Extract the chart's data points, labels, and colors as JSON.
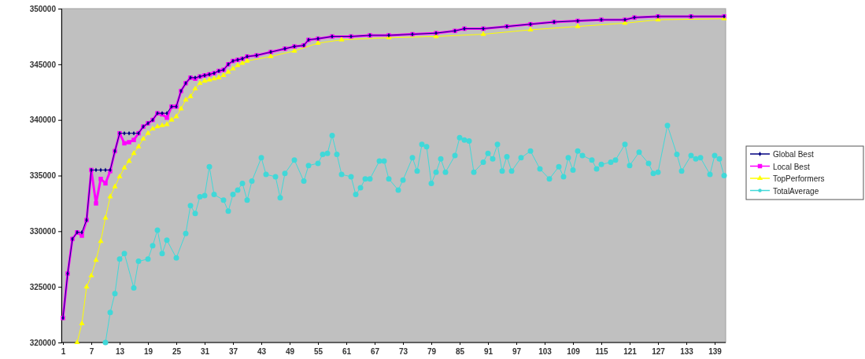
{
  "chart_data": {
    "type": "line",
    "xlim": [
      1,
      141
    ],
    "xticks": [
      1,
      7,
      13,
      19,
      25,
      31,
      37,
      43,
      49,
      55,
      61,
      67,
      73,
      79,
      85,
      91,
      97,
      103,
      109,
      115,
      121,
      127,
      133,
      139
    ],
    "ylim": [
      320000,
      350000
    ],
    "yticks": [
      320000,
      325000,
      330000,
      335000,
      340000,
      345000,
      350000
    ],
    "grid": false,
    "legend": "right",
    "series": [
      {
        "name": "Global Best",
        "color": "#000080",
        "marker": "diamond",
        "x": [
          1,
          2,
          3,
          4,
          5,
          6,
          7,
          8,
          9,
          10,
          11,
          12,
          13,
          14,
          15,
          16,
          17,
          18,
          19,
          20,
          21,
          22,
          23,
          24,
          25,
          26,
          27,
          28,
          29,
          30,
          31,
          32,
          33,
          34,
          35,
          36,
          37,
          38,
          39,
          40,
          42,
          45,
          48,
          50,
          52,
          53,
          55,
          58,
          62,
          66,
          70,
          75,
          80,
          84,
          86,
          90,
          95,
          100,
          105,
          110,
          115,
          120,
          122,
          127,
          134,
          141
        ],
        "values": [
          322200,
          326200,
          329300,
          329900,
          329900,
          331000,
          335500,
          335500,
          335500,
          335500,
          335500,
          337200,
          338800,
          338800,
          338800,
          338800,
          338800,
          339400,
          339700,
          340000,
          340600,
          340600,
          340600,
          341200,
          341200,
          342600,
          343300,
          343800,
          343800,
          343900,
          344000,
          344100,
          344200,
          344400,
          344500,
          345000,
          345300,
          345400,
          345500,
          345700,
          345800,
          346100,
          346400,
          346600,
          346700,
          347200,
          347300,
          347500,
          347500,
          347600,
          347600,
          347700,
          347800,
          348000,
          348200,
          348200,
          348400,
          348600,
          348800,
          348900,
          349000,
          349000,
          349200,
          349300,
          349300,
          349300
        ]
      },
      {
        "name": "Local Best",
        "color": "#ff00ff",
        "marker": "square",
        "x": [
          1,
          2,
          3,
          4,
          5,
          6,
          7,
          8,
          9,
          10,
          11,
          12,
          13,
          14,
          15,
          16,
          17,
          18,
          19,
          20,
          21,
          22,
          23,
          24,
          25,
          26,
          27,
          28,
          29,
          30,
          31,
          32,
          33,
          34,
          35,
          36,
          37,
          38,
          39,
          40,
          42,
          45,
          48,
          50,
          52,
          53,
          55,
          58,
          62,
          66,
          70,
          75,
          80,
          84,
          86,
          90,
          95,
          100,
          105,
          110,
          115,
          120,
          122,
          127,
          134,
          141
        ],
        "values": [
          322200,
          326200,
          329300,
          329900,
          329600,
          331000,
          335500,
          332500,
          334700,
          334300,
          335400,
          337200,
          338800,
          337900,
          338000,
          338200,
          338800,
          339400,
          339700,
          340000,
          340600,
          340500,
          340200,
          341200,
          341200,
          342600,
          343300,
          343800,
          343700,
          343900,
          344000,
          344100,
          344200,
          344400,
          344500,
          345000,
          345300,
          345400,
          345500,
          345700,
          345800,
          346100,
          346400,
          346600,
          346700,
          347200,
          347300,
          347500,
          347500,
          347600,
          347600,
          347700,
          347800,
          348000,
          348200,
          348200,
          348400,
          348600,
          348800,
          348900,
          349000,
          349000,
          349200,
          349300,
          349300,
          349300
        ]
      },
      {
        "name": "TopPerformers",
        "color": "#ffff00",
        "marker": "triangle",
        "x": [
          4,
          5,
          6,
          7,
          8,
          9,
          10,
          11,
          12,
          13,
          14,
          15,
          16,
          17,
          18,
          19,
          20,
          21,
          22,
          23,
          24,
          25,
          26,
          27,
          28,
          29,
          30,
          31,
          32,
          33,
          34,
          35,
          36,
          37,
          38,
          39,
          40,
          45,
          50,
          55,
          60,
          70,
          80,
          90,
          100,
          110,
          120,
          127,
          141
        ],
        "values": [
          320000,
          321700,
          325000,
          326000,
          327400,
          329100,
          331200,
          333100,
          334000,
          334900,
          335700,
          336300,
          337000,
          337600,
          338300,
          338800,
          339200,
          339400,
          339500,
          339600,
          340000,
          340300,
          341000,
          341800,
          342100,
          342800,
          343300,
          343500,
          343600,
          343700,
          343800,
          344000,
          344300,
          344600,
          344900,
          345100,
          345300,
          345700,
          346200,
          346900,
          347200,
          347400,
          347500,
          347700,
          348100,
          348400,
          348700,
          349000,
          349100
        ]
      },
      {
        "name": "TotalAverage",
        "color": "#40d8d8",
        "marker": "circle",
        "x": [
          10,
          11,
          12,
          13,
          14,
          16,
          17,
          19,
          20,
          21,
          22,
          23,
          25,
          27,
          28,
          29,
          30,
          31,
          32,
          33,
          35,
          36,
          37,
          38,
          39,
          40,
          41,
          43,
          44,
          46,
          47,
          48,
          50,
          52,
          53,
          55,
          56,
          57,
          58,
          59,
          60,
          62,
          63,
          64,
          65,
          66,
          68,
          69,
          70,
          72,
          73,
          75,
          76,
          77,
          78,
          79,
          80,
          81,
          82,
          84,
          85,
          86,
          87,
          88,
          90,
          91,
          92,
          93,
          94,
          95,
          96,
          98,
          100,
          102,
          104,
          106,
          107,
          108,
          109,
          110,
          111,
          113,
          114,
          115,
          117,
          118,
          120,
          121,
          123,
          125,
          126,
          127,
          129,
          131,
          132,
          134,
          135,
          136,
          138,
          139,
          140,
          141
        ],
        "values": [
          320000,
          322700,
          324400,
          327500,
          328000,
          324900,
          327300,
          327500,
          328700,
          330100,
          328000,
          329200,
          327600,
          329800,
          332300,
          331600,
          333100,
          333200,
          335800,
          333300,
          332800,
          331800,
          333300,
          333700,
          334300,
          332800,
          334500,
          336600,
          335100,
          334900,
          333000,
          335200,
          336400,
          334500,
          335900,
          336100,
          336900,
          337000,
          338600,
          336900,
          335100,
          334900,
          333300,
          333900,
          334700,
          334700,
          336300,
          336300,
          334700,
          333700,
          334600,
          336600,
          335400,
          337800,
          337600,
          334300,
          335300,
          336500,
          335300,
          336800,
          338400,
          338200,
          338100,
          335300,
          336200,
          337000,
          336500,
          337800,
          335400,
          336700,
          335400,
          336600,
          337200,
          335600,
          334700,
          335800,
          334900,
          336600,
          335500,
          337200,
          336800,
          336400,
          335600,
          336000,
          336200,
          336400,
          337800,
          335900,
          337100,
          336100,
          335200,
          335300,
          339500,
          336900,
          335400,
          336800,
          336500,
          336600,
          335100,
          336800,
          336500,
          335000
        ]
      }
    ]
  }
}
